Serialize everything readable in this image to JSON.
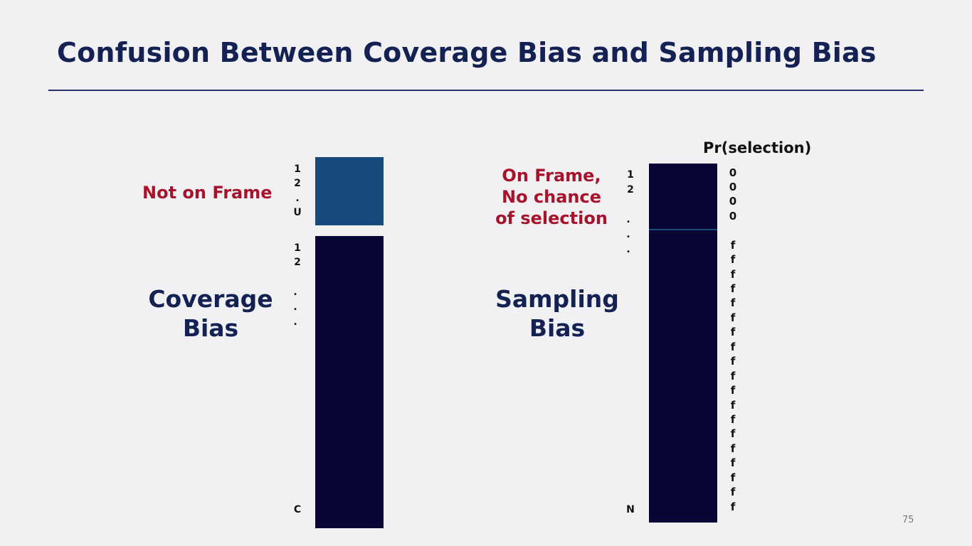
{
  "slide": {
    "title": "Confusion Between Coverage Bias and Sampling Bias",
    "page_number": "75"
  },
  "coverage": {
    "not_on_frame_label": "Not on Frame",
    "bias_label_line1": "Coverage",
    "bias_label_line2": "Bias",
    "top_indices": [
      "1",
      "2",
      ".",
      "U"
    ],
    "bottom_indices": [
      "1",
      "2",
      ".",
      ".",
      ".",
      "C"
    ]
  },
  "sampling": {
    "on_frame_label_lines": [
      "On Frame,",
      "No chance",
      "of selection"
    ],
    "bias_label_line1": "Sampling",
    "bias_label_line2": "Bias",
    "indices": [
      "1",
      "2",
      ".",
      ".",
      ".",
      "N"
    ],
    "pr_header": "Pr(selection)",
    "pr_zero_values": [
      "0",
      "0",
      "0",
      "0"
    ],
    "pr_f_values": [
      "f",
      "f",
      "f",
      "f",
      "f",
      "f",
      "f",
      "f",
      "f",
      "f",
      "f",
      "f",
      "f",
      "f",
      "f",
      "f",
      "f",
      "f",
      "f"
    ]
  },
  "colors": {
    "dark_navy": "#070634",
    "steel_blue": "#174a7c",
    "title_navy": "#142253",
    "label_red": "#a7132b"
  }
}
